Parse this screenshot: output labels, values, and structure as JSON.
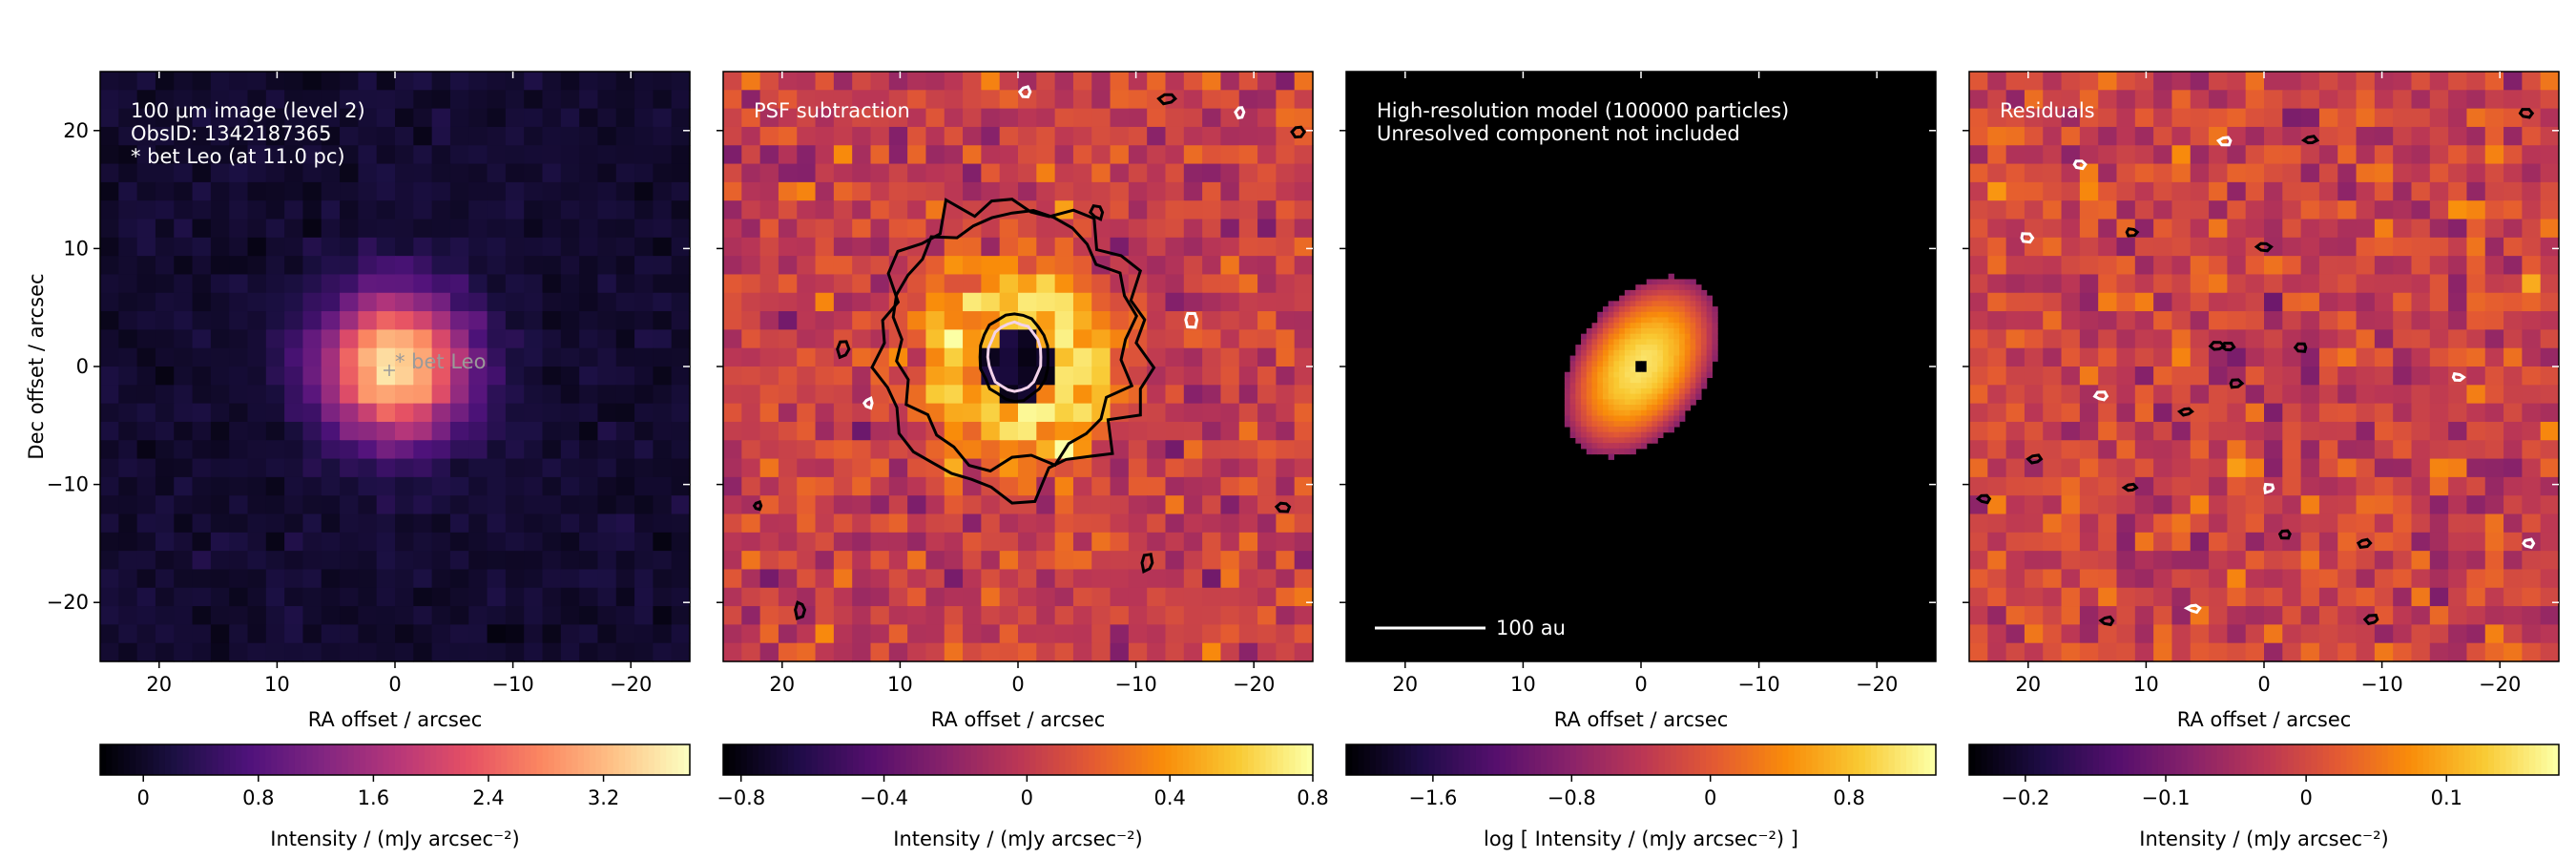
{
  "chart_data": [
    {
      "type": "heatmap",
      "panel": "observed-image",
      "annotation_lines": [
        "100 μm image (level 2)",
        "ObsID: 1342187365",
        "* bet Leo (at 11.0 pc)"
      ],
      "star_marker_label": "* bet Leo",
      "xlabel": "RA offset / arcsec",
      "ylabel": "Dec offset / arcsec",
      "xlim": [
        25,
        -25
      ],
      "ylim": [
        -25,
        25
      ],
      "xticks": [
        20,
        10,
        0,
        -10,
        -20
      ],
      "xtick_labels": [
        "20",
        "10",
        "0",
        "−10",
        "−20"
      ],
      "yticks": [
        20,
        10,
        0,
        -10,
        -20
      ],
      "ytick_labels": [
        "20",
        "10",
        "0",
        "−10",
        "−20"
      ],
      "colormap": "magma",
      "colorbar": {
        "label": "Intensity / (mJy arcsec⁻²)",
        "range": [
          -0.3,
          3.8
        ],
        "ticks": [
          0,
          0.8,
          1.6,
          2.4,
          3.2
        ],
        "tick_labels": [
          "0",
          "0.8",
          "1.6",
          "2.4",
          "3.2"
        ]
      },
      "source": {
        "x": 0,
        "y": 0,
        "peak": 3.6,
        "fwhm_arcsec": 10
      }
    },
    {
      "type": "heatmap",
      "panel": "psf-subtraction",
      "annotation_lines": [
        "PSF subtraction"
      ],
      "xlabel": "RA offset / arcsec",
      "xlim": [
        25,
        -25
      ],
      "ylim": [
        -25,
        25
      ],
      "xticks": [
        20,
        10,
        0,
        -10,
        -20
      ],
      "xtick_labels": [
        "20",
        "10",
        "0",
        "−10",
        "−20"
      ],
      "colormap": "inferno",
      "colorbar": {
        "label": "Intensity / (mJy arcsec⁻²)",
        "range": [
          -0.85,
          0.8
        ],
        "ticks": [
          -0.8,
          -0.4,
          0,
          0.4,
          0.8
        ],
        "tick_labels": [
          "−0.8",
          "−0.4",
          "0",
          "0.4",
          "0.8"
        ]
      },
      "ring": {
        "x": 0,
        "y": 0,
        "peak": 0.5,
        "hole": -0.8
      }
    },
    {
      "type": "heatmap",
      "panel": "model",
      "annotation_lines": [
        "High-resolution model (100000 particles)",
        "Unresolved component not included"
      ],
      "scalebar_label": "100 au",
      "xlabel": "RA offset / arcsec",
      "xlim": [
        25,
        -25
      ],
      "ylim": [
        -25,
        25
      ],
      "xticks": [
        20,
        10,
        0,
        -10,
        -20
      ],
      "xtick_labels": [
        "20",
        "10",
        "0",
        "−10",
        "−20"
      ],
      "colormap": "inferno",
      "colorbar": {
        "label": "log [ Intensity / (mJy arcsec⁻²) ]",
        "range": [
          -2.1,
          1.3
        ],
        "ticks": [
          -1.6,
          -0.8,
          0,
          0.8
        ],
        "tick_labels": [
          "−1.6",
          "−0.8",
          "0",
          "0.8"
        ]
      },
      "disk": {
        "x": 0,
        "y": 0,
        "semi_major_arcsec": 8.5,
        "semi_minor_arcsec": 5.5,
        "position_angle_deg": 125
      }
    },
    {
      "type": "heatmap",
      "panel": "residuals",
      "annotation_lines": [
        "Residuals"
      ],
      "xlabel": "RA offset / arcsec",
      "xlim": [
        25,
        -25
      ],
      "ylim": [
        -25,
        25
      ],
      "xticks": [
        20,
        10,
        0,
        -10,
        -20
      ],
      "xtick_labels": [
        "20",
        "10",
        "0",
        "−10",
        "−20"
      ],
      "colormap": "inferno",
      "colorbar": {
        "label": "Intensity / (mJy arcsec⁻²)",
        "range": [
          -0.24,
          0.18
        ],
        "ticks": [
          -0.2,
          -0.1,
          0,
          0.1
        ],
        "tick_labels": [
          "−0.2",
          "−0.1",
          "0",
          "0.1"
        ]
      }
    }
  ]
}
